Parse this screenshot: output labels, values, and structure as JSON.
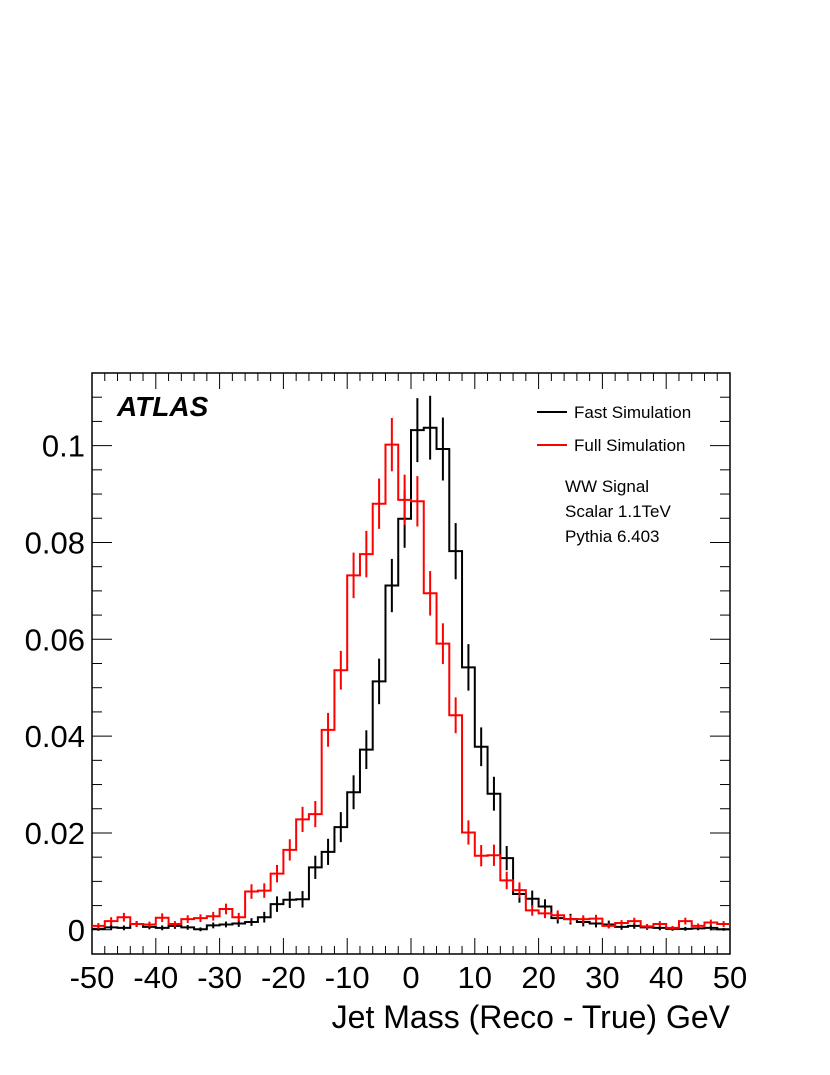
{
  "chart_data": {
    "type": "histogram",
    "xlabel": "Jet Mass (Reco - True) GeV",
    "ylabel": "",
    "xlim": [
      -50,
      50
    ],
    "ylim": [
      -0.005,
      0.115
    ],
    "bin_width": 2,
    "x_ticks": [
      -50,
      -40,
      -30,
      -20,
      -10,
      0,
      10,
      20,
      30,
      40,
      50
    ],
    "x_tick_labels": [
      "-50",
      "-40",
      "-30",
      "-20",
      "-10",
      "0",
      "10",
      "20",
      "30",
      "40",
      "50"
    ],
    "y_ticks": [
      0,
      0.02,
      0.04,
      0.06,
      0.08,
      0.1
    ],
    "y_tick_labels": [
      "0",
      "0.02",
      "0.04",
      "0.06",
      "0.08",
      "0.1"
    ],
    "experiment_label": "ATLAS",
    "legend_position": "top-right",
    "annotations": [
      "WW Signal",
      "Scalar 1.1TeV",
      "Pythia 6.403"
    ],
    "series": [
      {
        "name": "Fast Simulation",
        "color": "#000000",
        "values": [
          0.0002,
          0.0005,
          0.0004,
          0.0012,
          0.0006,
          0.0004,
          0.0008,
          0.0005,
          0.0001,
          0.0009,
          0.0011,
          0.0013,
          0.0016,
          0.0026,
          0.0053,
          0.0062,
          0.0063,
          0.0129,
          0.0161,
          0.0212,
          0.0284,
          0.0372,
          0.0513,
          0.0711,
          0.0849,
          0.1032,
          0.1037,
          0.0993,
          0.0782,
          0.0542,
          0.0378,
          0.0281,
          0.0148,
          0.0074,
          0.0064,
          0.0048,
          0.0024,
          0.0022,
          0.0016,
          0.0013,
          0.0011,
          0.0006,
          0.0008,
          0.0005,
          0.0004,
          0.0002,
          0.0002,
          0.0003,
          0.0004,
          0.0001
        ],
        "errors": [
          0.0004,
          0.0005,
          0.0005,
          0.0006,
          0.0005,
          0.0005,
          0.0006,
          0.0005,
          0.0004,
          0.0006,
          0.0006,
          0.0007,
          0.0008,
          0.0011,
          0.0016,
          0.0017,
          0.0017,
          0.0024,
          0.0027,
          0.0031,
          0.0035,
          0.004,
          0.0047,
          0.0055,
          0.006,
          0.0066,
          0.0066,
          0.0065,
          0.0058,
          0.0048,
          0.004,
          0.0035,
          0.0025,
          0.0018,
          0.0017,
          0.0015,
          0.0011,
          0.0011,
          0.0009,
          0.0008,
          0.0008,
          0.0006,
          0.0006,
          0.0005,
          0.0005,
          0.0004,
          0.0004,
          0.0004,
          0.0005,
          0.0003
        ]
      },
      {
        "name": "Full Simulation",
        "color": "#ff0000",
        "values": [
          0.0008,
          0.0018,
          0.0026,
          0.0012,
          0.0011,
          0.0025,
          0.0012,
          0.0022,
          0.0024,
          0.0028,
          0.0043,
          0.0026,
          0.0079,
          0.0081,
          0.0116,
          0.0165,
          0.0228,
          0.0239,
          0.0413,
          0.0536,
          0.0732,
          0.0776,
          0.088,
          0.1002,
          0.0888,
          0.0885,
          0.0695,
          0.0591,
          0.0443,
          0.0201,
          0.0153,
          0.0154,
          0.0102,
          0.0082,
          0.004,
          0.0034,
          0.003,
          0.0022,
          0.0022,
          0.0023,
          0.0008,
          0.0014,
          0.0018,
          0.0007,
          0.0012,
          0.0004,
          0.0018,
          0.0008,
          0.0015,
          0.0012
        ],
        "errors": [
          0.0006,
          0.0008,
          0.0009,
          0.0006,
          0.0006,
          0.0009,
          0.0006,
          0.0008,
          0.0008,
          0.0009,
          0.0011,
          0.0009,
          0.0015,
          0.0015,
          0.0018,
          0.0022,
          0.0026,
          0.0027,
          0.0035,
          0.004,
          0.0047,
          0.0048,
          0.0052,
          0.0055,
          0.0052,
          0.0052,
          0.0046,
          0.0042,
          0.0037,
          0.0025,
          0.0022,
          0.0022,
          0.0018,
          0.0016,
          0.0011,
          0.001,
          0.001,
          0.0008,
          0.0008,
          0.0008,
          0.0005,
          0.0006,
          0.0007,
          0.0005,
          0.0006,
          0.0004,
          0.0007,
          0.0005,
          0.0006,
          0.0006
        ]
      }
    ]
  }
}
